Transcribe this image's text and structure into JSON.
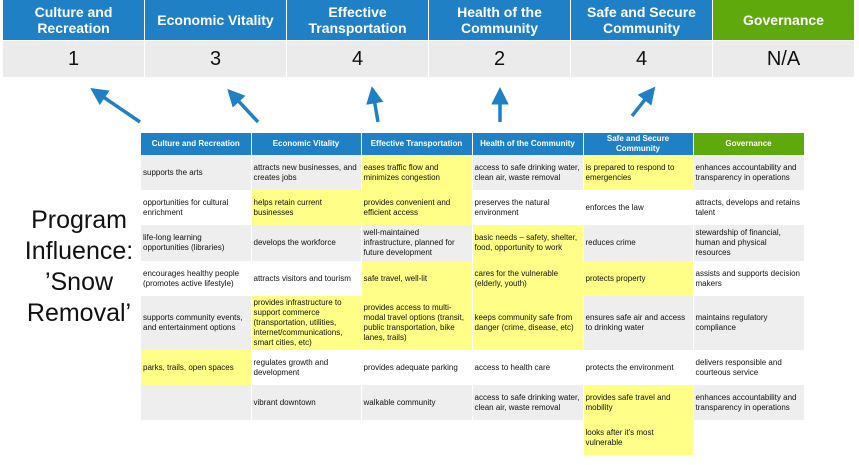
{
  "summary": {
    "headers": [
      "Culture and Recreation",
      "Economic Vitality",
      "Effective Transportation",
      "Health of the Community",
      "Safe and Secure Community",
      "Governance"
    ],
    "scores": [
      "1",
      "3",
      "4",
      "2",
      "4",
      "N/A"
    ]
  },
  "label": {
    "lines": [
      "Program",
      "Influence:",
      "’Snow",
      "Removal’"
    ]
  },
  "colors": {
    "blue": "#1f80c6",
    "green": "#5fa90d",
    "highlight": "#ffff88",
    "arrow": "#1f80c6"
  },
  "table": {
    "headers": [
      "Culture and Recreation",
      "Economic Vitality",
      "Effective Transportation",
      "Health of the Community",
      "Safe and Secure Community",
      "Governance"
    ],
    "rows": [
      {
        "cells": [
          "supports the arts",
          "attracts new businesses, and creates jobs",
          "eases traffic flow and minimizes congestion",
          "access to safe drinking water, clean air, waste removal",
          "is prepared to respond to emergencies",
          "enhances accountability and transparency in operations"
        ],
        "highlighted": [
          false,
          false,
          true,
          false,
          true,
          false
        ]
      },
      {
        "cells": [
          "opportunities for cultural enrichment",
          "helps retain current businesses",
          "provides convenient and efficient access",
          "preserves the natural environment",
          "enforces the law",
          "attracts, develops and retains talent"
        ],
        "highlighted": [
          false,
          true,
          true,
          false,
          false,
          false
        ]
      },
      {
        "cells": [
          "life-long learning opportunities (libraries)",
          "develops the workforce",
          "well-maintained infrastructure, planned for future development",
          "basic needs – safety, shelter, food, opportunity to work",
          "reduces crime",
          "stewardship of financial, human and physical resources"
        ],
        "highlighted": [
          false,
          false,
          false,
          true,
          false,
          false
        ]
      },
      {
        "cells": [
          "encourages healthy people (promotes active lifestyle)",
          "attracts visitors and tourism",
          "safe travel, well-lit",
          "cares for the vulnerable (elderly, youth)",
          "protects property",
          "assists and supports decision makers"
        ],
        "highlighted": [
          false,
          false,
          true,
          true,
          true,
          false
        ]
      },
      {
        "cells": [
          "supports community events, and entertainment options",
          "provides infrastructure to support commerce (transportation, utilities, internet/communications, smart cities, etc)",
          "provides access to multi-modal travel options (transit, public transportation, bike lanes, trails)",
          "keeps community safe from danger (crime, disease, etc)",
          "ensures safe air and access to drinking water",
          "maintains regulatory compliance"
        ],
        "highlighted": [
          false,
          true,
          true,
          true,
          false,
          false
        ]
      },
      {
        "cells": [
          "parks, trails, open spaces",
          "regulates growth and development",
          "provides adequate parking",
          "access to health care",
          "protects the environment",
          "delivers responsible and courteous service"
        ],
        "highlighted": [
          true,
          false,
          false,
          false,
          false,
          false
        ]
      },
      {
        "cells": [
          "",
          "vibrant downtown",
          "walkable community",
          "access to safe drinking water, clean air, waste removal",
          "provides safe travel and mobility",
          "enhances accountability and transparency in operations"
        ],
        "highlighted": [
          false,
          false,
          false,
          false,
          true,
          false
        ]
      },
      {
        "cells": [
          "",
          "",
          "",
          "",
          "looks after it's most vulnerable",
          ""
        ],
        "highlighted": [
          false,
          false,
          false,
          false,
          true,
          false
        ]
      }
    ]
  }
}
